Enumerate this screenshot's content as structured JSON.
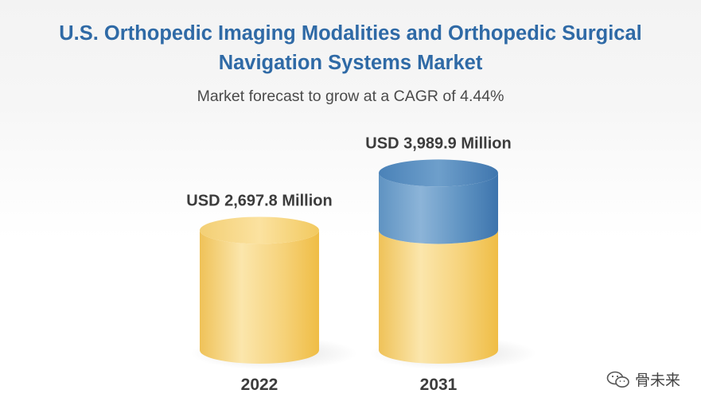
{
  "header": {
    "title_line1": "U.S. Orthopedic Imaging Modalities and Orthopedic Surgical",
    "title_line2": "Navigation Systems Market",
    "subtitle": "Market forecast to grow at a CAGR of 4.44%"
  },
  "watermark": {
    "text": "骨未来",
    "icon": "wechat-logo-icon"
  },
  "colors": {
    "base_light": "#fbe6ac",
    "base_mid": "#f6d27a",
    "base_dark": "#efbd45",
    "top_light": "#8cb4d8",
    "top_mid": "#5f93c2",
    "top_dark": "#3d74ad",
    "title": "#2f6aa6",
    "label": "#3c3c3c"
  },
  "chart_data": {
    "type": "bar",
    "title": "U.S. Orthopedic Imaging Modalities and Orthopedic Surgical Navigation Systems Market",
    "subtitle": "Market forecast to grow at a CAGR of 4.44%",
    "categories": [
      "2022",
      "2031"
    ],
    "values": [
      2697.8,
      3989.9
    ],
    "value_labels": [
      "USD 2,697.8 Million",
      "USD 3,989.9 Million"
    ],
    "unit": "USD Million",
    "cagr": "4.44%",
    "grid": false,
    "legend": "none"
  }
}
